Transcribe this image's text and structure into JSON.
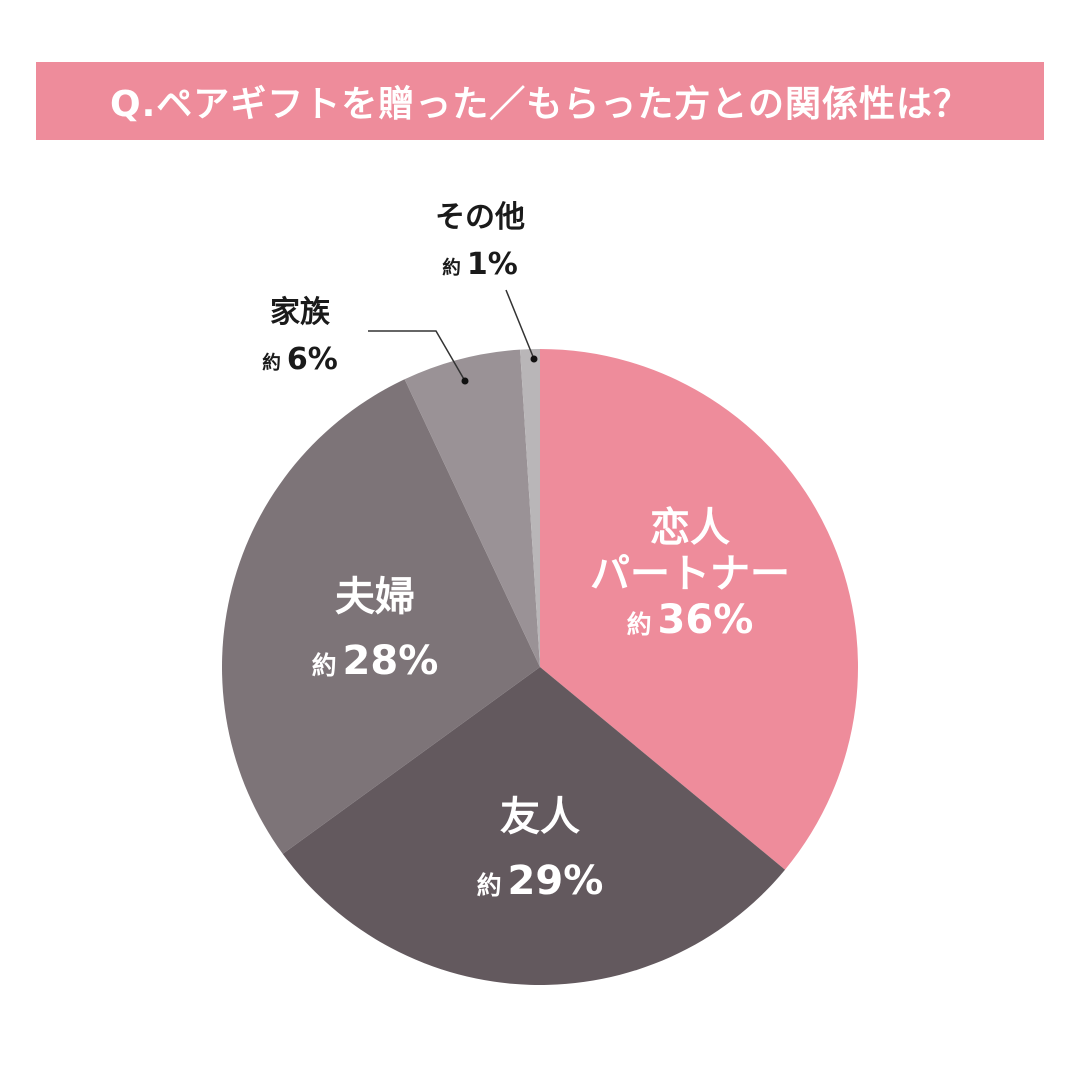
{
  "title": "Q.ペアギフトを贈った／もらった方との関係性は？",
  "approx_prefix": "約",
  "colors": {
    "title_bg": "#ee8c9b",
    "lover": "#ee8c9b",
    "friend": "#63595e",
    "couple": "#7d7478",
    "family": "#9a9296",
    "other": "#b9b6b8"
  },
  "labels": {
    "lover": {
      "line1": "恋人",
      "line2": "パートナー",
      "pct": "36%"
    },
    "friend": {
      "line1": "友人",
      "pct": "29%"
    },
    "couple": {
      "line1": "夫婦",
      "pct": "28%"
    },
    "family": {
      "line1": "家族",
      "pct": "6%"
    },
    "other": {
      "line1": "その他",
      "pct": "1%"
    }
  },
  "chart_data": {
    "type": "pie",
    "title": "Q.ペアギフトを贈った／もらった方との関係性は？",
    "categories": [
      "恋人・パートナー",
      "友人",
      "夫婦",
      "家族",
      "その他"
    ],
    "values": [
      36,
      29,
      28,
      6,
      1
    ],
    "unit": "%",
    "value_prefix": "約",
    "start_angle": "12 o'clock",
    "direction": "clockwise",
    "colors": [
      "#ee8c9b",
      "#63595e",
      "#7d7478",
      "#9a9296",
      "#b9b6b8"
    ],
    "legend": "none (direct labels)"
  }
}
